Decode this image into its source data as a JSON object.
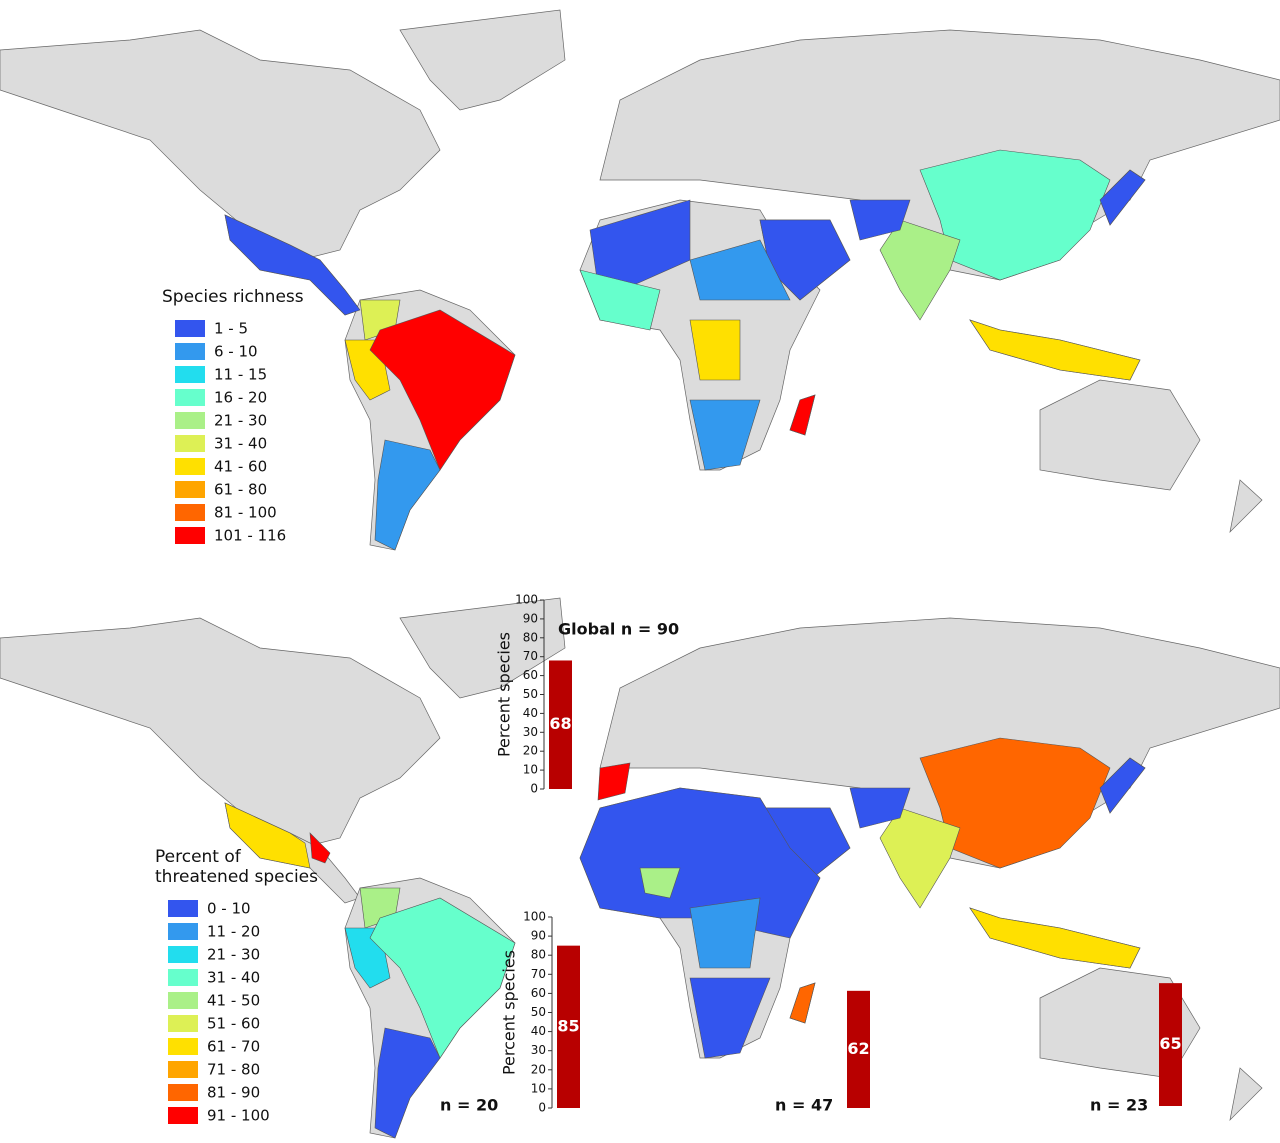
{
  "top_map": {
    "legend": {
      "title": "Species richness",
      "entries": [
        {
          "label": "1 - 5",
          "color": "#3355ee"
        },
        {
          "label": "6 - 10",
          "color": "#3399ee"
        },
        {
          "label": "11 - 15",
          "color": "#22ddee"
        },
        {
          "label": "16 - 20",
          "color": "#66ffcc"
        },
        {
          "label": "21 - 30",
          "color": "#aaf088"
        },
        {
          "label": "31 - 40",
          "color": "#ddf055"
        },
        {
          "label": "41 - 60",
          "color": "#ffe000"
        },
        {
          "label": "61 - 80",
          "color": "#ffa500"
        },
        {
          "label": "81 - 100",
          "color": "#ff6600"
        },
        {
          "label": "101 - 116",
          "color": "#ff0000"
        }
      ]
    }
  },
  "bottom_map": {
    "legend": {
      "title_lines": [
        "Percent of",
        "threatened species"
      ],
      "entries": [
        {
          "label": "0 - 10",
          "color": "#3355ee"
        },
        {
          "label": "11 - 20",
          "color": "#3399ee"
        },
        {
          "label": "21 - 30",
          "color": "#22ddee"
        },
        {
          "label": "31 - 40",
          "color": "#66ffcc"
        },
        {
          "label": "41 - 50",
          "color": "#aaf088"
        },
        {
          "label": "51 - 60",
          "color": "#ddf055"
        },
        {
          "label": "61 - 70",
          "color": "#ffe000"
        },
        {
          "label": "71 - 80",
          "color": "#ffa500"
        },
        {
          "label": "81 - 90",
          "color": "#ff6600"
        },
        {
          "label": "91 - 100",
          "color": "#ff0000"
        }
      ]
    },
    "insets": {
      "type": "bar",
      "ylim": [
        0,
        100
      ],
      "yticks": [
        0,
        10,
        20,
        30,
        40,
        50,
        60,
        70,
        80,
        90,
        100
      ],
      "axis_label": "Percent species",
      "bar_color": "#b80000",
      "bars": [
        {
          "label": "Global n = 90",
          "value": 68,
          "axis": true
        },
        {
          "label": "n = 20",
          "value": 85,
          "axis": true
        },
        {
          "label": "n = 47",
          "value": 62,
          "axis": false
        },
        {
          "label": "n = 23",
          "value": 65,
          "axis": false
        }
      ]
    }
  }
}
